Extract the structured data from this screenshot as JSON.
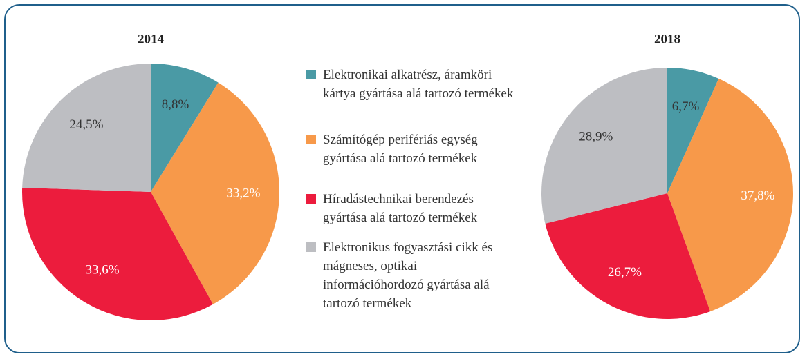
{
  "chart_data": [
    {
      "type": "pie",
      "title": "2014",
      "values": [
        8.8,
        33.2,
        33.6,
        24.5
      ],
      "value_labels": [
        "8,8%",
        "33,2%",
        "33,6%",
        "24,5%"
      ]
    },
    {
      "type": "pie",
      "title": "2018",
      "values": [
        6.7,
        37.8,
        26.7,
        28.9
      ],
      "value_labels": [
        "6,7%",
        "37,8%",
        "26,7%",
        "28,9%"
      ]
    }
  ],
  "legend": {
    "labels": [
      "Elektronikai alkatrész, áramköri kártya gyártása alá tartozó termékek",
      "Számítógép perifériás egység gyártása alá tartozó termékek",
      "Híradástechnikai berendezés gyártása alá tartozó termékek",
      "Elektronikus fogyasztási cikk és mágneses, optikai információhordozó gyártása alá tartozó termékek"
    ],
    "colors": [
      "#4a9aa5",
      "#f7994a",
      "#ec1c3d",
      "#bdbec2"
    ]
  }
}
